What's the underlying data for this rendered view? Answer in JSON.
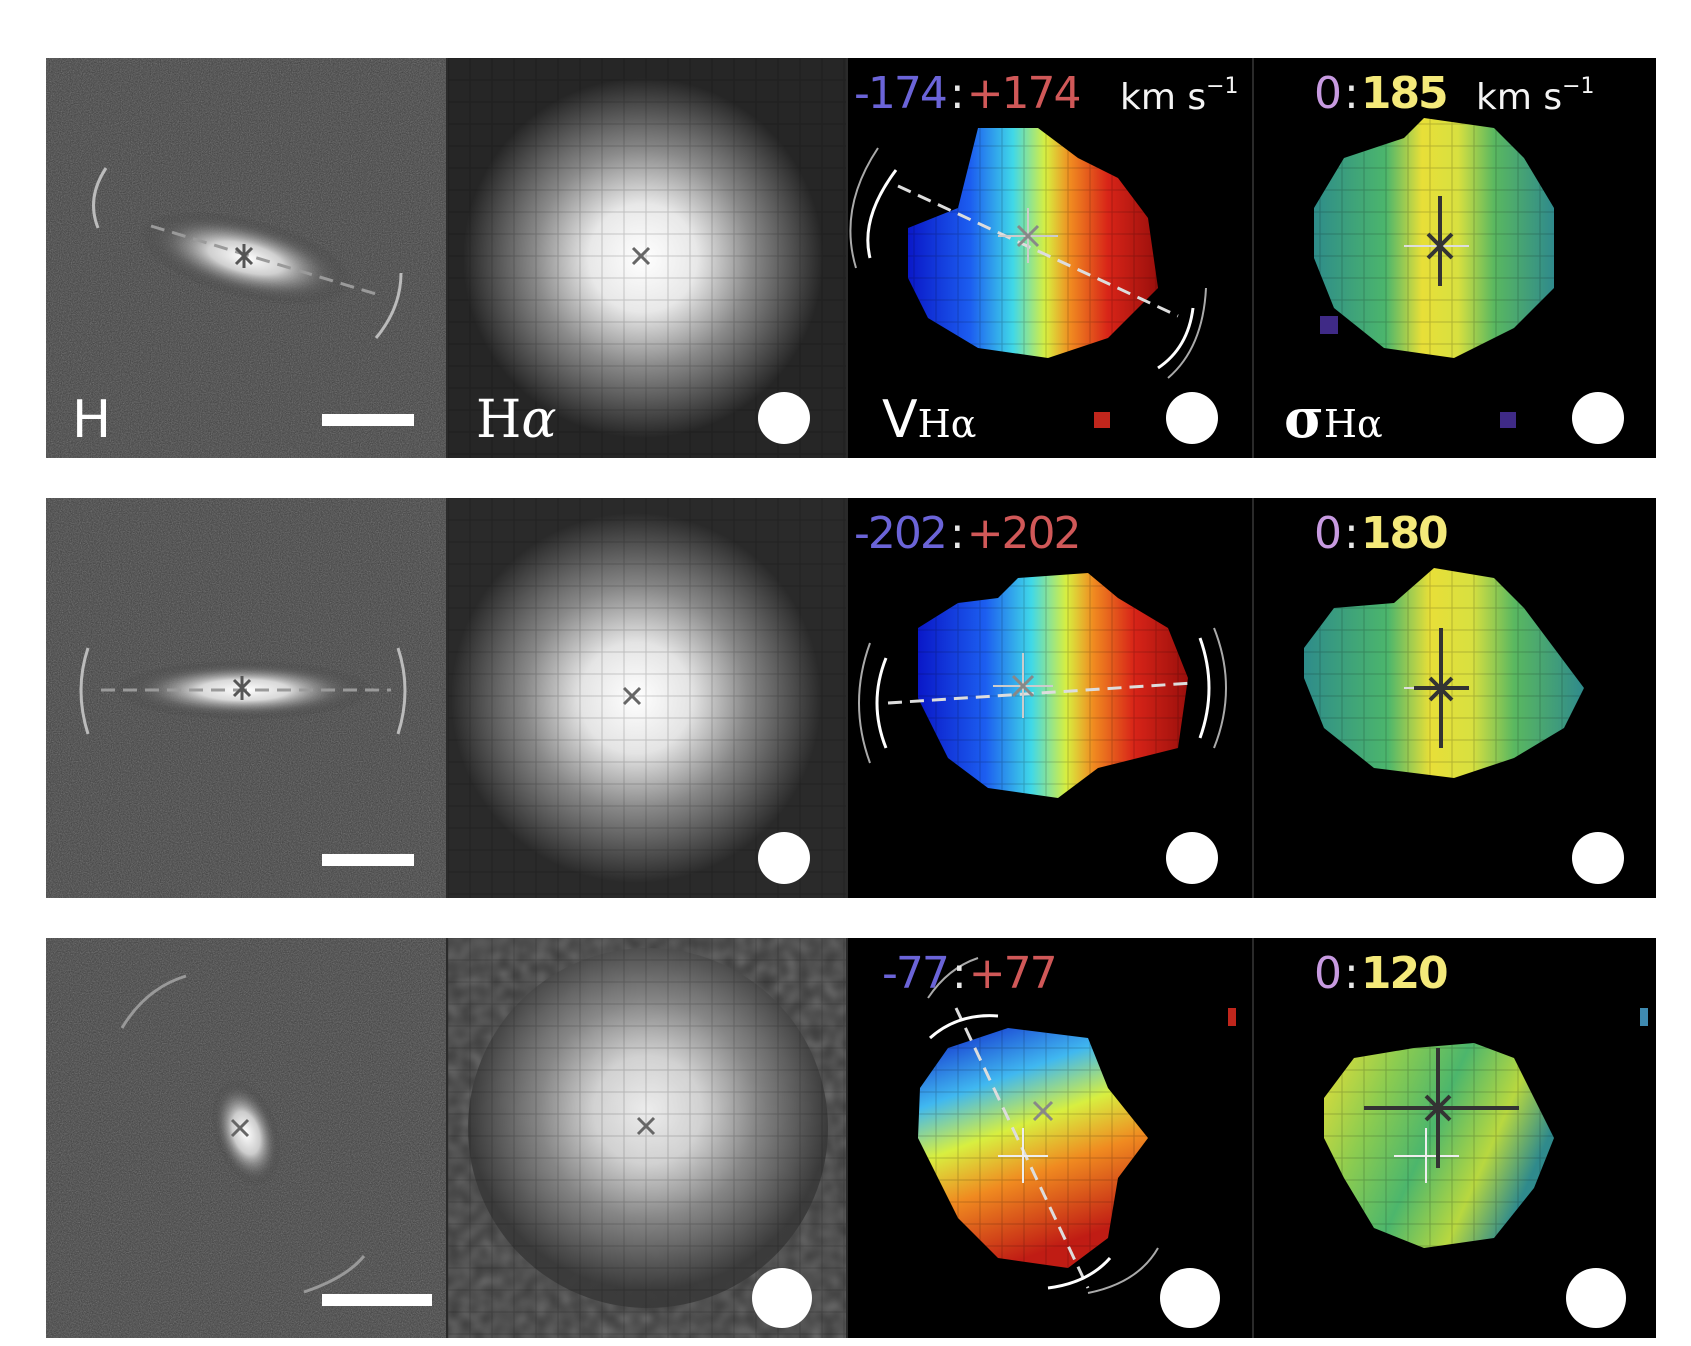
{
  "figure": {
    "columns": [
      {
        "label": "H"
      },
      {
        "label_main": "H",
        "label_greek": "α"
      },
      {
        "label_main": "V",
        "label_sub": "Hα"
      },
      {
        "label_main": "σ",
        "label_sub": "Hα"
      }
    ],
    "velocity_unit": "km s",
    "velocity_unit_exp": "−1",
    "rows": [
      {
        "velocity_range": {
          "neg": "-174",
          "sep": ":",
          "pos": "+174"
        },
        "dispersion_range": {
          "min": "0",
          "sep": ":",
          "max": "185"
        },
        "show_units": true,
        "colors": {
          "vel_swatch": "#c0261c",
          "disp_swatch": "#3f2a86"
        }
      },
      {
        "velocity_range": {
          "neg": "-202",
          "sep": ":",
          "pos": "+202"
        },
        "dispersion_range": {
          "min": "0",
          "sep": ":",
          "max": "180"
        },
        "show_units": false
      },
      {
        "velocity_range": {
          "neg": "-77",
          "sep": ":",
          "pos": "+77"
        },
        "dispersion_range": {
          "min": "0",
          "sep": ":",
          "max": "120"
        },
        "show_units": false
      }
    ]
  }
}
